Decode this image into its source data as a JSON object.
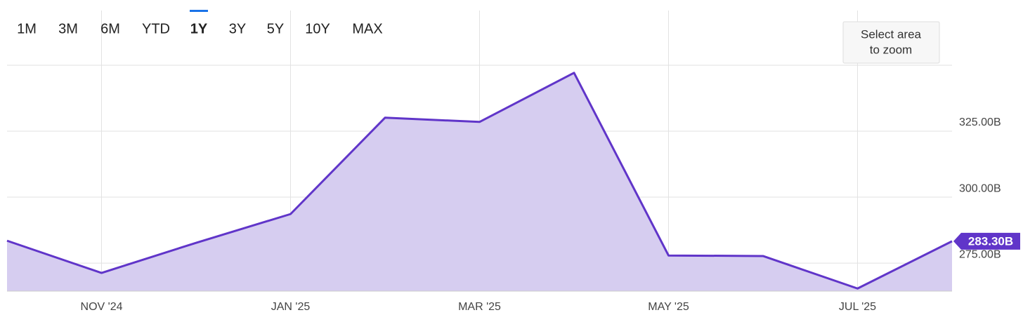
{
  "chart_data": {
    "type": "area",
    "range_buttons": [
      "1M",
      "3M",
      "6M",
      "YTD",
      "1Y",
      "3Y",
      "5Y",
      "10Y",
      "MAX"
    ],
    "selected_range": "1Y",
    "disabled_ranges": [
      "10Y",
      "MAX"
    ],
    "zoom_button": [
      "Select area",
      "to zoom"
    ],
    "categories": [
      null,
      "NOV '24",
      null,
      "JAN '25",
      null,
      "MAR '25",
      null,
      "MAY '25",
      null,
      "JUL '25",
      null
    ],
    "values": [
      283.5,
      271.3,
      282.7,
      293.6,
      330.1,
      328.5,
      347.1,
      277.9,
      277.7,
      265.4,
      283.3
    ],
    "last_value_label": "283.30B",
    "line_color": "#6035c9",
    "fill_color": "#d6cdf0",
    "ylim": [
      264.4,
      370.7
    ],
    "yticks": [
      {
        "value": 275,
        "label": "275.00B"
      },
      {
        "value": 300,
        "label": "300.00B"
      },
      {
        "value": 325,
        "label": "325.00B"
      }
    ],
    "grid": true
  }
}
